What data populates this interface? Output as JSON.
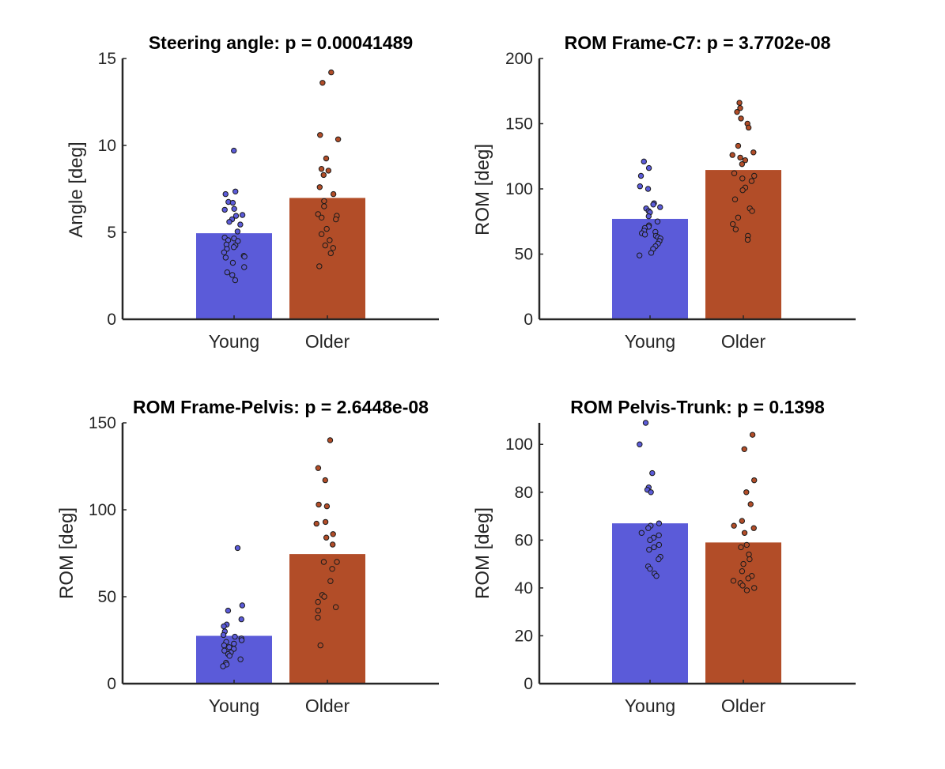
{
  "chart_data": [
    {
      "type": "bar",
      "title": "Steering angle: p = 0.00041489",
      "ylabel": "Angle [deg]",
      "categories": [
        "Young",
        "Older"
      ],
      "values": [
        4.95,
        6.98
      ],
      "ylim": [
        0,
        15
      ],
      "yticks": [
        "0",
        "5",
        "10",
        "15"
      ],
      "colors": [
        "#5b5bd9",
        "#b24d28"
      ],
      "scatter": [
        [
          9.7,
          7.35,
          7.2,
          6.75,
          6.7,
          6.35,
          6.3,
          6.0,
          5.95,
          5.75,
          5.6,
          5.45,
          5.05,
          4.7,
          4.65,
          4.55,
          4.5,
          4.3,
          4.25,
          4.15,
          4.05,
          3.85,
          3.65,
          3.6,
          3.55,
          3.25,
          3.0,
          2.7,
          2.55,
          2.25
        ],
        [
          14.2,
          13.6,
          10.6,
          10.35,
          9.25,
          8.65,
          8.55,
          8.3,
          7.6,
          7.2,
          6.8,
          6.5,
          6.05,
          5.95,
          5.85,
          5.75,
          5.2,
          4.9,
          4.55,
          4.25,
          4.1,
          3.8,
          3.05
        ]
      ]
    },
    {
      "type": "bar",
      "title": "ROM Frame-C7: p = 3.7702e-08",
      "ylabel": "ROM [deg]",
      "categories": [
        "Young",
        "Older"
      ],
      "values": [
        77,
        114.5
      ],
      "ylim": [
        0,
        200
      ],
      "yticks": [
        "0",
        "50",
        "100",
        "150",
        "200"
      ],
      "colors": [
        "#5b5bd9",
        "#b24d28"
      ],
      "scatter": [
        [
          121,
          116,
          110,
          102,
          100,
          89,
          88,
          86,
          85,
          83,
          82,
          79,
          75,
          72,
          71,
          70,
          68,
          67,
          66,
          65,
          64,
          63,
          62,
          60,
          58,
          56,
          54,
          51,
          49
        ],
        [
          166,
          162,
          159,
          154,
          150,
          147,
          133,
          128,
          126,
          124,
          122,
          119,
          112,
          110,
          108,
          106,
          101,
          99,
          92,
          85,
          83,
          78,
          73,
          69,
          64,
          61
        ]
      ]
    },
    {
      "type": "bar",
      "title": "ROM Frame-Pelvis: p = 2.6448e-08",
      "ylabel": "ROM [deg]",
      "categories": [
        "Young",
        "Older"
      ],
      "values": [
        27.5,
        74.5
      ],
      "ylim": [
        0,
        150
      ],
      "yticks": [
        "0",
        "50",
        "100",
        "150"
      ],
      "colors": [
        "#5b5bd9",
        "#b24d28"
      ],
      "scatter": [
        [
          78,
          45,
          42,
          37,
          34,
          33,
          30,
          28,
          27,
          26,
          25,
          24,
          23,
          22,
          21,
          20,
          19,
          18,
          17,
          16,
          14,
          12,
          11,
          10
        ],
        [
          140,
          124,
          117,
          103,
          102,
          93,
          92,
          86,
          84,
          80,
          70,
          70,
          66,
          59,
          51,
          50,
          47,
          44,
          42,
          38,
          22
        ]
      ]
    },
    {
      "type": "bar",
      "title": "ROM Pelvis-Trunk: p = 0.1398",
      "ylabel": "ROM [deg]",
      "categories": [
        "Young",
        "Older"
      ],
      "values": [
        67,
        59
      ],
      "ylim": [
        0,
        109
      ],
      "yticks": [
        "0",
        "20",
        "40",
        "60",
        "80",
        "100"
      ],
      "colors": [
        "#5b5bd9",
        "#b24d28"
      ],
      "scatter": [
        [
          109,
          100,
          88,
          82,
          81,
          80,
          67,
          66,
          65,
          63,
          62,
          61,
          60,
          58,
          57,
          56,
          53,
          52,
          49,
          48,
          46,
          45
        ],
        [
          104,
          98,
          85,
          80,
          75,
          68,
          66,
          65,
          63,
          58,
          57,
          54,
          52,
          50,
          47,
          45,
          44,
          43,
          42,
          41,
          40,
          39
        ]
      ]
    }
  ]
}
